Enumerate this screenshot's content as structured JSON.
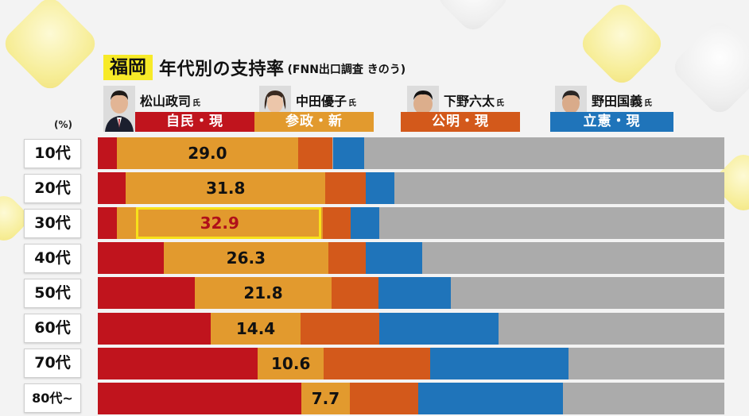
{
  "header": {
    "region": "福岡",
    "title": "年代別の支持率",
    "subtitle": "(FNN出口調査  きのう)"
  },
  "unit": "(%)",
  "candidates": [
    {
      "name": "松山政司",
      "honorific": "氏",
      "party": "自民・現",
      "color": "#c0141d"
    },
    {
      "name": "中田優子",
      "honorific": "氏",
      "party": "参政・新",
      "color": "#e29a2e"
    },
    {
      "name": "下野六太",
      "honorific": "氏",
      "party": "公明・現",
      "color": "#d3591b"
    },
    {
      "name": "野田国義",
      "honorific": "氏",
      "party": "立憲・現",
      "color": "#1f74ba"
    }
  ],
  "colors": {
    "track": "#ababab",
    "highlight": "#f8e11a",
    "highlight_text": "#b0101a"
  },
  "chart_data": {
    "type": "bar",
    "stacked": true,
    "orientation": "horizontal",
    "categories": [
      "10代",
      "20代",
      "30代",
      "40代",
      "50代",
      "60代",
      "70代",
      "80代~"
    ],
    "series": [
      {
        "name": "松山政司",
        "values": [
          3,
          4.5,
          3,
          10.5,
          15.5,
          18,
          25.5,
          32.5
        ]
      },
      {
        "name": "中田優子",
        "values": [
          29.0,
          31.8,
          32.9,
          26.3,
          21.8,
          14.4,
          10.6,
          7.7
        ]
      },
      {
        "name": "下野六太",
        "values": [
          5.5,
          6.5,
          4.5,
          6,
          7.5,
          12.5,
          17,
          11
        ]
      },
      {
        "name": "野田国義",
        "values": [
          5,
          4.5,
          4.5,
          9,
          11.5,
          19,
          22,
          23
        ]
      }
    ],
    "labels": [
      "29.0",
      "31.8",
      "32.9",
      "26.3",
      "21.8",
      "14.4",
      "10.6",
      "7.7"
    ],
    "highlight_index": 2,
    "xlim": [
      0,
      100
    ]
  }
}
